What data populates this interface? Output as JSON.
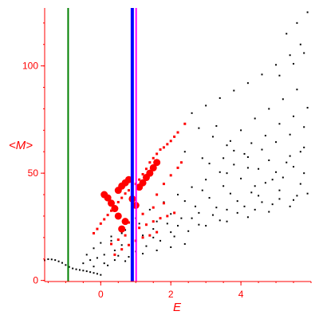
{
  "chart_data": {
    "type": "scatter",
    "title": "",
    "xlabel": "E",
    "ylabel": "<M>",
    "xlim": [
      -1.6,
      6.0
    ],
    "ylim": [
      -0.5,
      127
    ],
    "x_ticks": [
      0,
      2,
      4
    ],
    "y_ticks": [
      0,
      50,
      100
    ],
    "grid": false,
    "legend": "none",
    "vertical_lines": [
      {
        "x": -0.93,
        "color": "#008000"
      },
      {
        "x": 0.9,
        "color": "#0000ff"
      },
      {
        "x": 1.01,
        "color": "#ff00ff"
      }
    ],
    "series": [
      {
        "color": "#000000",
        "marker": "small-square",
        "points": [
          [
            -1.6,
            9.4
          ],
          [
            -1.5,
            9.9
          ],
          [
            -1.4,
            9.8
          ],
          [
            -1.3,
            9.5
          ],
          [
            -1.2,
            8.9
          ],
          [
            -1.1,
            8.2
          ],
          [
            -1.0,
            7.2
          ],
          [
            -0.9,
            6.3
          ],
          [
            -0.8,
            5.6
          ],
          [
            -0.7,
            5.2
          ],
          [
            -0.6,
            4.9
          ],
          [
            -0.5,
            4.6
          ],
          [
            -0.4,
            4.3
          ],
          [
            -0.3,
            3.9
          ],
          [
            -0.2,
            3.5
          ],
          [
            -0.1,
            3.1
          ],
          [
            0.0,
            2.6
          ],
          [
            -0.5,
            8.0
          ],
          [
            -0.3,
            9.5
          ],
          [
            -0.1,
            10.5
          ],
          [
            0.1,
            12.0
          ],
          [
            0.2,
            7.0
          ],
          [
            0.4,
            14.0
          ],
          [
            0.5,
            11.5
          ],
          [
            0.6,
            16.5
          ],
          [
            0.7,
            9.0
          ],
          [
            0.9,
            19.0
          ],
          [
            1.0,
            13.5
          ],
          [
            1.2,
            21.0
          ],
          [
            1.3,
            16.0
          ],
          [
            1.5,
            24.0
          ],
          [
            1.7,
            18.5
          ],
          [
            1.9,
            26.5
          ],
          [
            2.1,
            20.5
          ],
          [
            2.3,
            29.0
          ],
          [
            2.5,
            23.0
          ],
          [
            2.8,
            31.5
          ],
          [
            3.0,
            25.5
          ],
          [
            3.3,
            34.0
          ],
          [
            3.6,
            27.5
          ],
          [
            3.9,
            37.0
          ],
          [
            4.2,
            29.5
          ],
          [
            4.5,
            39.5
          ],
          [
            4.8,
            32.0
          ],
          [
            5.1,
            42.0
          ],
          [
            5.4,
            34.5
          ],
          [
            5.7,
            45.0
          ],
          [
            1.0,
            29.0
          ],
          [
            1.4,
            33.0
          ],
          [
            1.8,
            36.5
          ],
          [
            2.2,
            40.0
          ],
          [
            2.6,
            43.5
          ],
          [
            3.0,
            47.0
          ],
          [
            3.4,
            50.5
          ],
          [
            3.8,
            54.0
          ],
          [
            4.2,
            57.5
          ],
          [
            4.6,
            61.0
          ],
          [
            5.0,
            64.5
          ],
          [
            5.4,
            68.0
          ],
          [
            5.8,
            71.5
          ],
          [
            2.6,
            78.0
          ],
          [
            3.0,
            81.5
          ],
          [
            3.4,
            85.0
          ],
          [
            3.8,
            88.5
          ],
          [
            4.2,
            92.0
          ],
          [
            4.6,
            96.0
          ],
          [
            5.0,
            100.5
          ],
          [
            5.4,
            105.0
          ],
          [
            5.7,
            110.0
          ],
          [
            2.8,
            71.0
          ],
          [
            3.2,
            67.0
          ],
          [
            3.6,
            63.0
          ],
          [
            4.0,
            70.0
          ],
          [
            4.4,
            75.5
          ],
          [
            4.8,
            80.0
          ],
          [
            5.2,
            84.5
          ],
          [
            5.6,
            89.0
          ],
          [
            3.3,
            72.0
          ],
          [
            3.7,
            65.0
          ],
          [
            4.1,
            59.0
          ],
          [
            4.5,
            52.0
          ],
          [
            4.9,
            47.0
          ],
          [
            5.3,
            55.0
          ],
          [
            5.7,
            60.0
          ],
          [
            2.4,
            37.0
          ],
          [
            2.9,
            42.0
          ],
          [
            3.5,
            44.0
          ],
          [
            4.0,
            47.5
          ],
          [
            4.4,
            44.0
          ],
          [
            5.0,
            50.5
          ],
          [
            5.5,
            53.0
          ],
          [
            1.6,
            27.5
          ],
          [
            2.0,
            31.0
          ],
          [
            2.7,
            34.5
          ],
          [
            3.1,
            38.5
          ],
          [
            3.7,
            40.5
          ],
          [
            4.3,
            41.0
          ],
          [
            4.7,
            45.5
          ],
          [
            5.2,
            48.0
          ],
          [
            5.8,
            50.0
          ],
          [
            2.2,
            25.5
          ],
          [
            2.6,
            29.0
          ],
          [
            3.2,
            30.5
          ],
          [
            3.6,
            33.0
          ],
          [
            4.1,
            34.5
          ],
          [
            4.6,
            36.5
          ],
          [
            5.1,
            38.0
          ],
          [
            5.6,
            39.5
          ],
          [
            0.3,
            18.5
          ],
          [
            0.6,
            22.0
          ],
          [
            1.1,
            24.5
          ],
          [
            1.5,
            20.0
          ],
          [
            2.0,
            22.5
          ],
          [
            2.8,
            26.0
          ],
          [
            3.4,
            28.0
          ],
          [
            3.9,
            31.5
          ],
          [
            4.4,
            33.0
          ],
          [
            4.9,
            35.5
          ],
          [
            5.5,
            37.5
          ],
          [
            5.9,
            40.5
          ],
          [
            -0.2,
            6.5
          ],
          [
            0.1,
            8.0
          ],
          [
            0.4,
            9.5
          ],
          [
            0.8,
            11.0
          ],
          [
            1.2,
            12.5
          ],
          [
            1.6,
            14.0
          ],
          [
            2.0,
            15.5
          ],
          [
            2.4,
            17.0
          ],
          [
            -0.4,
            12.0
          ],
          [
            -0.2,
            15.0
          ],
          [
            0.0,
            17.5
          ],
          [
            0.3,
            20.5
          ],
          [
            0.7,
            23.5
          ],
          [
            1.1,
            26.5
          ],
          [
            3.5,
            57.0
          ],
          [
            3.8,
            60.5
          ],
          [
            4.3,
            64.0
          ],
          [
            4.7,
            67.5
          ],
          [
            5.1,
            73.0
          ],
          [
            5.5,
            76.5
          ],
          [
            5.9,
            80.5
          ],
          [
            2.4,
            60.0
          ],
          [
            2.9,
            57.0
          ],
          [
            3.1,
            54.5
          ],
          [
            3.6,
            50.0
          ],
          [
            4.2,
            52.5
          ],
          [
            4.8,
            56.0
          ],
          [
            5.4,
            58.0
          ],
          [
            5.8,
            62.0
          ],
          [
            5.3,
            115.0
          ],
          [
            5.6,
            120.0
          ],
          [
            5.9,
            125.0
          ],
          [
            5.1,
            95.5
          ],
          [
            5.5,
            101.0
          ],
          [
            5.8,
            106.0
          ]
        ]
      },
      {
        "color": "#ff0000",
        "marker": "square",
        "points": [
          [
            -0.2,
            22.0
          ],
          [
            -0.1,
            24.0
          ],
          [
            0.0,
            26.5
          ],
          [
            0.1,
            28.5
          ],
          [
            0.2,
            30.5
          ],
          [
            0.3,
            32.5
          ],
          [
            0.4,
            34.5
          ],
          [
            0.5,
            36.5
          ],
          [
            0.6,
            38.5
          ],
          [
            0.7,
            40.5
          ],
          [
            0.8,
            42.0
          ],
          [
            0.9,
            43.5
          ],
          [
            1.0,
            45.0
          ],
          [
            1.1,
            47.0
          ],
          [
            1.2,
            49.5
          ],
          [
            1.3,
            52.0
          ],
          [
            1.4,
            55.0
          ],
          [
            1.5,
            57.0
          ],
          [
            1.6,
            59.0
          ],
          [
            1.7,
            61.0
          ],
          [
            1.8,
            62.0
          ],
          [
            1.9,
            63.5
          ],
          [
            2.0,
            65.0
          ],
          [
            2.1,
            67.0
          ],
          [
            2.2,
            69.0
          ],
          [
            2.4,
            73.0
          ],
          [
            0.3,
            17.0
          ],
          [
            0.5,
            19.0
          ],
          [
            0.7,
            21.0
          ],
          [
            0.9,
            23.0
          ],
          [
            1.1,
            24.5
          ],
          [
            1.3,
            26.0
          ],
          [
            1.5,
            27.5
          ],
          [
            1.7,
            29.0
          ],
          [
            1.9,
            30.0
          ],
          [
            2.1,
            31.5
          ],
          [
            0.4,
            12.0
          ],
          [
            0.6,
            14.5
          ],
          [
            0.8,
            16.5
          ],
          [
            1.0,
            18.5
          ],
          [
            1.2,
            20.0
          ],
          [
            1.4,
            21.0
          ],
          [
            1.6,
            22.5
          ],
          [
            1.6,
            40.0
          ],
          [
            1.8,
            45.0
          ],
          [
            2.0,
            49.0
          ],
          [
            2.2,
            52.5
          ],
          [
            2.3,
            55.0
          ],
          [
            0.8,
            27.0
          ],
          [
            1.2,
            31.0
          ],
          [
            1.5,
            34.0
          ],
          [
            1.8,
            36.0
          ]
        ]
      },
      {
        "color": "#ff0000",
        "marker": "circle",
        "points": [
          [
            0.1,
            40.0
          ],
          [
            0.2,
            38.5
          ],
          [
            0.3,
            36.0
          ],
          [
            0.4,
            33.5
          ],
          [
            0.5,
            42.0
          ],
          [
            0.6,
            44.0
          ],
          [
            0.7,
            45.5
          ],
          [
            0.8,
            47.0
          ],
          [
            0.9,
            38.0
          ],
          [
            1.0,
            35.0
          ],
          [
            1.1,
            43.5
          ],
          [
            1.2,
            45.5
          ],
          [
            1.3,
            48.0
          ],
          [
            1.4,
            50.0
          ],
          [
            1.5,
            52.5
          ],
          [
            1.6,
            55.0
          ],
          [
            0.6,
            24.0
          ],
          [
            0.7,
            27.5
          ],
          [
            0.5,
            30.0
          ]
        ]
      }
    ]
  }
}
